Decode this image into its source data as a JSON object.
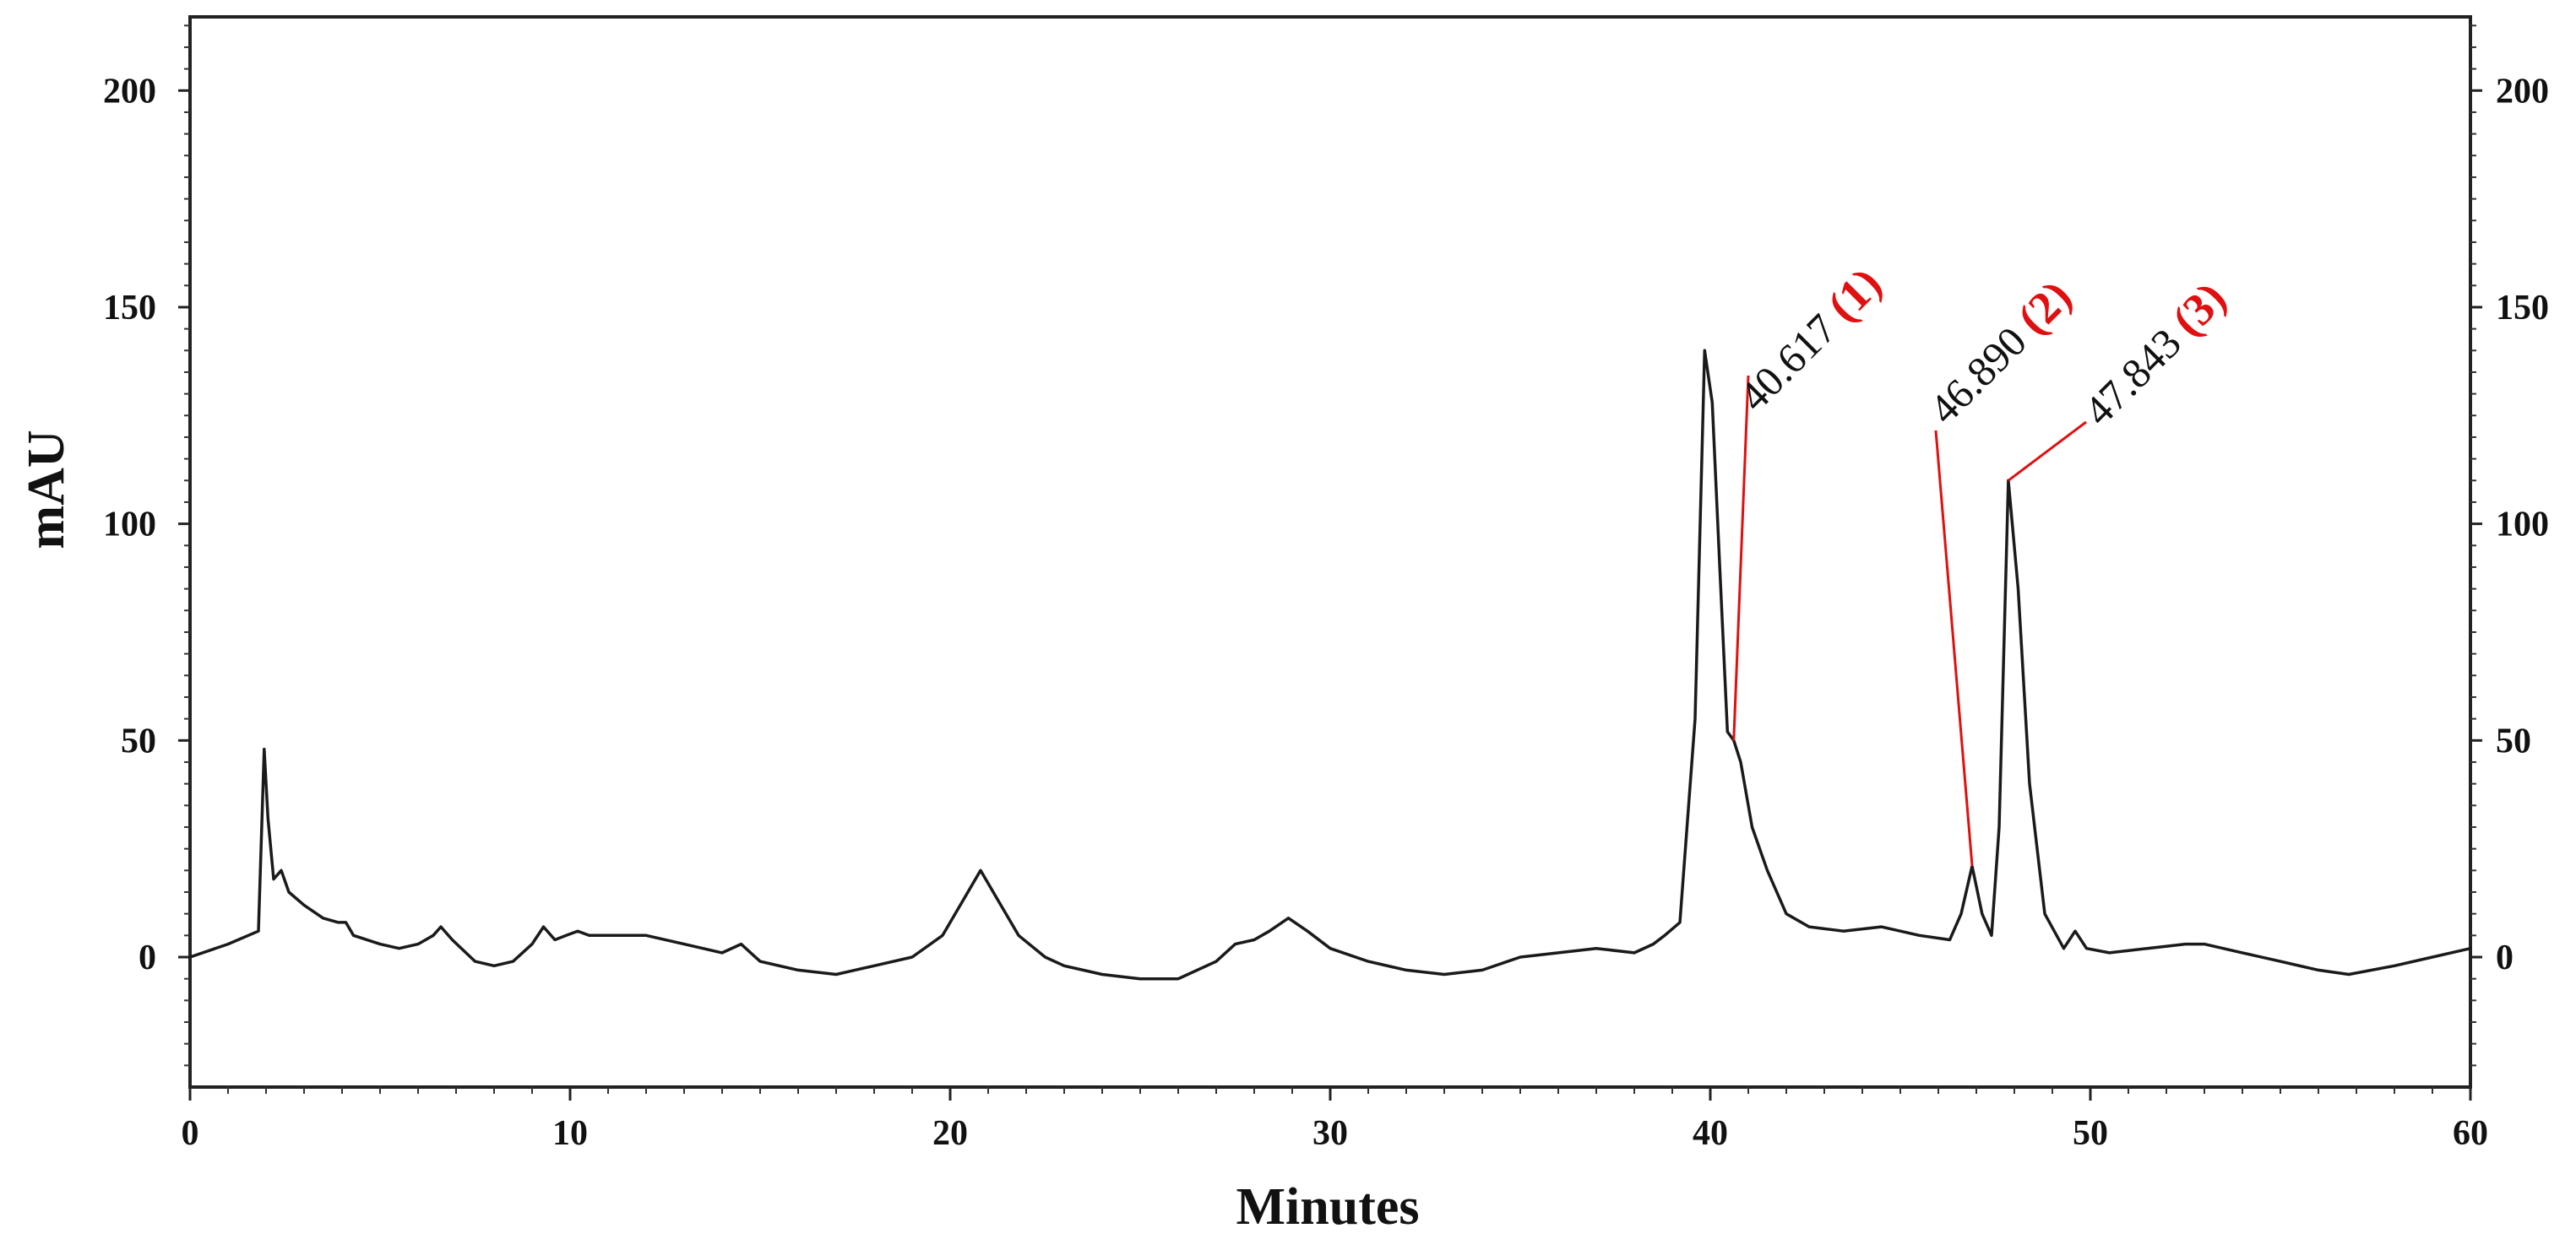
{
  "chart_data": {
    "type": "line",
    "title": "",
    "xlabel": "Minutes",
    "ylabel": "mAU",
    "xlim": [
      0,
      60
    ],
    "ylim": [
      -30,
      217
    ],
    "x_ticks": [
      0,
      10,
      20,
      30,
      40,
      50,
      60
    ],
    "y_ticks": [
      0,
      50,
      100,
      150,
      200
    ],
    "grid": false,
    "legend": "none",
    "colors": {
      "trace": "#1a1a1a",
      "annotation": "#e01010"
    },
    "series": [
      {
        "x": [
          0,
          1.0,
          1.8,
          1.95,
          2.05,
          2.2,
          2.4,
          2.6,
          3.0,
          3.5,
          3.9,
          4.1,
          4.3,
          5.0,
          5.5,
          6.0,
          6.4,
          6.6,
          6.9,
          7.5,
          8.0,
          8.5,
          9.0,
          9.3,
          9.6,
          9.9,
          10.2,
          10.5,
          11.0,
          12.0,
          13.0,
          14.0,
          14.5,
          15.0,
          16.0,
          17.0,
          18.0,
          19.0,
          19.8,
          20.4,
          20.8,
          21.2,
          21.8,
          22.5,
          23.0,
          24.0,
          25.0,
          26.0,
          27.0,
          27.5,
          28.0,
          28.4,
          28.9,
          29.4,
          30.0,
          31.0,
          32.0,
          33.0,
          34.0,
          35.0,
          36.0,
          37.0,
          38.0,
          38.5,
          38.8,
          39.2,
          39.6,
          39.85,
          40.05,
          40.25,
          40.45,
          40.617,
          40.8,
          41.1,
          41.5,
          42.0,
          42.6,
          43.5,
          44.5,
          45.5,
          46.3,
          46.6,
          46.89,
          47.15,
          47.4,
          47.6,
          47.843,
          48.1,
          48.4,
          48.8,
          49.3,
          49.6,
          49.9,
          50.5,
          51.5,
          52.5,
          53.0,
          54.0,
          55.0,
          56.0,
          56.8,
          58.0,
          59.0,
          60.0
        ],
        "y": [
          0,
          3,
          6,
          48,
          32,
          18,
          20,
          15,
          12,
          9,
          8,
          8,
          5,
          3,
          2,
          3,
          5,
          7,
          4,
          -1,
          -2,
          -1,
          3,
          7,
          4,
          5,
          6,
          5,
          5,
          5,
          3,
          1,
          3,
          -1,
          -3,
          -4,
          -2,
          0,
          5,
          14,
          20,
          14,
          5,
          0,
          -2,
          -4,
          -5,
          -5,
          -1,
          3,
          4,
          6,
          9,
          6,
          2,
          -1,
          -3,
          -4,
          -3,
          0,
          1,
          2,
          1,
          3,
          5,
          8,
          55,
          140,
          128,
          90,
          52,
          50,
          45,
          30,
          20,
          10,
          7,
          6,
          7,
          5,
          4,
          10,
          21,
          10,
          5,
          30,
          110,
          85,
          40,
          10,
          2,
          6,
          2,
          1,
          2,
          3,
          3,
          1,
          -1,
          -3,
          -4,
          -2,
          0,
          2
        ]
      }
    ],
    "annotations": [
      {
        "time": "40.617",
        "id": "(1)",
        "x": 40.617,
        "y": 50
      },
      {
        "time": "46.890",
        "id": "(2)",
        "x": 46.89,
        "y": 21
      },
      {
        "time": "47.843",
        "id": "(3)",
        "x": 47.843,
        "y": 110
      }
    ]
  }
}
